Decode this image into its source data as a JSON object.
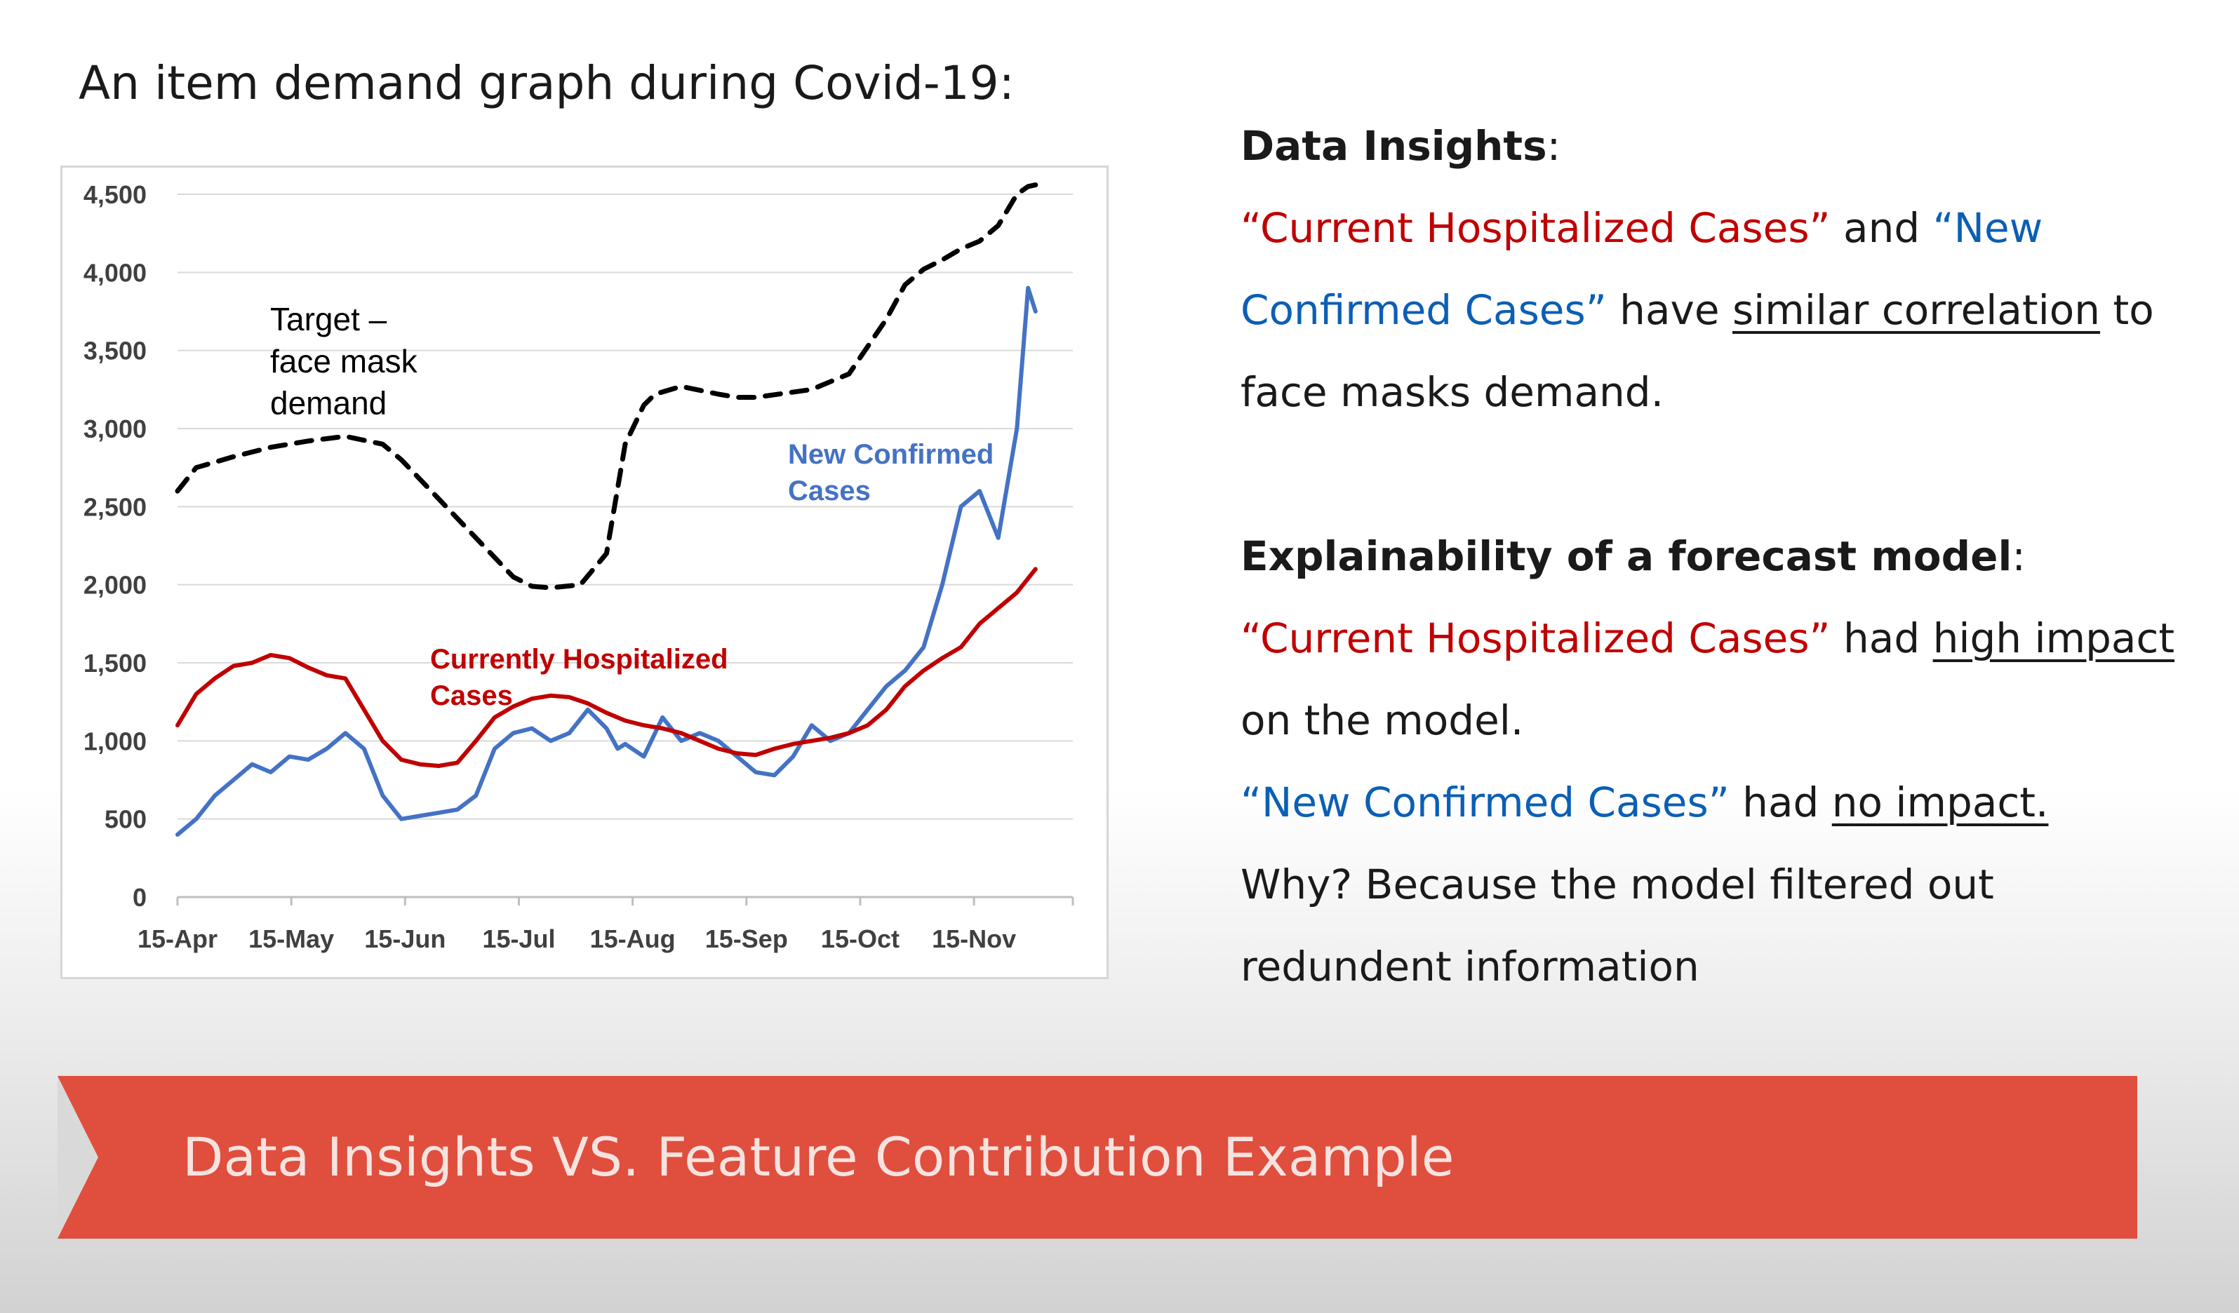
{
  "slide": {
    "title": "An item demand graph during Covid-19:"
  },
  "insights": {
    "heading": "Data Insights",
    "colon": ":",
    "hosp_quote": "“Current Hospitalized Cases”",
    "and": " and ",
    "new_quote_a": "“New",
    "new_quote_b": "Confirmed Cases”",
    "have": " have ",
    "similar": "similar correlation",
    "to": " to",
    "end": "face masks demand."
  },
  "explain": {
    "heading": "Explainability of a forecast model",
    "colon": ":",
    "hosp_quote": "“Current Hospitalized Cases”",
    "had1": " had ",
    "high": "high impact",
    "on_model": "on the model.",
    "new_quote": "“New Confirmed Cases”",
    "had2": " had ",
    "no_impact": "no impact.",
    "why": "Why? Because the model filtered out",
    "redundent": "redundent information"
  },
  "banner": {
    "text": "Data Insights VS. Feature Contribution Example",
    "color": "#e04e3e"
  },
  "chart_data": {
    "type": "line",
    "title": "",
    "xlabel": "",
    "ylabel": "",
    "ylim": [
      0,
      4500
    ],
    "y_ticks": [
      "0",
      "500",
      "1,000",
      "1,500",
      "2,000",
      "2,500",
      "3,000",
      "3,500",
      "4,000",
      "4,500"
    ],
    "x_ticks": [
      "15-Apr",
      "15-May",
      "15-Jun",
      "15-Jul",
      "15-Aug",
      "15-Sep",
      "15-Oct",
      "15-Nov"
    ],
    "x_unit": "days since 15-Apr",
    "xlim": [
      0,
      240
    ],
    "grid": true,
    "annotations": [
      {
        "line1": "Target –",
        "line2": "face mask",
        "line3": "demand",
        "color": "#000000"
      },
      {
        "line1": "New Confirmed",
        "line2": "Cases",
        "color": "#4472c4"
      },
      {
        "line1": "Currently Hospitalized",
        "line2": "Cases",
        "color": "#c00000"
      }
    ],
    "series": [
      {
        "name": "Target – face mask demand",
        "style": "dashed",
        "color": "#000000",
        "x": [
          0,
          5,
          15,
          25,
          35,
          45,
          55,
          60,
          70,
          80,
          90,
          95,
          100,
          108,
          115,
          120,
          125,
          128,
          135,
          145,
          150,
          155,
          170,
          180,
          190,
          195,
          200,
          205,
          210,
          215,
          220,
          225,
          228,
          230
        ],
        "y": [
          2600,
          2750,
          2820,
          2880,
          2920,
          2950,
          2900,
          2800,
          2550,
          2300,
          2050,
          1990,
          1980,
          2000,
          2200,
          2900,
          3150,
          3220,
          3270,
          3220,
          3200,
          3200,
          3250,
          3350,
          3700,
          3920,
          4020,
          4080,
          4150,
          4200,
          4300,
          4500,
          4550,
          4560
        ]
      },
      {
        "name": "New Confirmed Cases",
        "style": "solid",
        "color": "#4472c4",
        "x": [
          0,
          5,
          10,
          15,
          20,
          25,
          30,
          35,
          40,
          45,
          50,
          55,
          60,
          65,
          70,
          75,
          80,
          85,
          90,
          95,
          100,
          105,
          110,
          115,
          118,
          120,
          125,
          130,
          135,
          140,
          145,
          150,
          155,
          160,
          165,
          170,
          175,
          180,
          185,
          190,
          195,
          200,
          205,
          210,
          215,
          220,
          225,
          228,
          230
        ],
        "y": [
          400,
          500,
          650,
          750,
          850,
          800,
          900,
          880,
          950,
          1050,
          950,
          650,
          500,
          520,
          540,
          560,
          650,
          950,
          1050,
          1080,
          1000,
          1050,
          1200,
          1080,
          950,
          980,
          900,
          1150,
          1000,
          1050,
          1000,
          900,
          800,
          780,
          900,
          1100,
          1000,
          1050,
          1200,
          1350,
          1450,
          1600,
          2000,
          2500,
          2600,
          2300,
          3000,
          3900,
          3750
        ]
      },
      {
        "name": "Currently Hospitalized Cases",
        "style": "solid",
        "color": "#c00000",
        "x": [
          0,
          5,
          10,
          15,
          20,
          25,
          30,
          35,
          40,
          45,
          50,
          55,
          60,
          65,
          70,
          75,
          80,
          85,
          90,
          95,
          100,
          105,
          110,
          115,
          120,
          125,
          130,
          135,
          140,
          145,
          150,
          155,
          160,
          165,
          170,
          175,
          180,
          185,
          190,
          195,
          200,
          205,
          210,
          215,
          220,
          225,
          230
        ],
        "y": [
          1100,
          1300,
          1400,
          1480,
          1500,
          1550,
          1530,
          1470,
          1420,
          1400,
          1200,
          1000,
          880,
          850,
          840,
          860,
          1000,
          1150,
          1220,
          1270,
          1290,
          1280,
          1240,
          1180,
          1130,
          1100,
          1080,
          1050,
          1000,
          950,
          920,
          910,
          950,
          980,
          1000,
          1020,
          1050,
          1100,
          1200,
          1350,
          1450,
          1530,
          1600,
          1750,
          1850,
          1950,
          2100
        ]
      }
    ]
  }
}
